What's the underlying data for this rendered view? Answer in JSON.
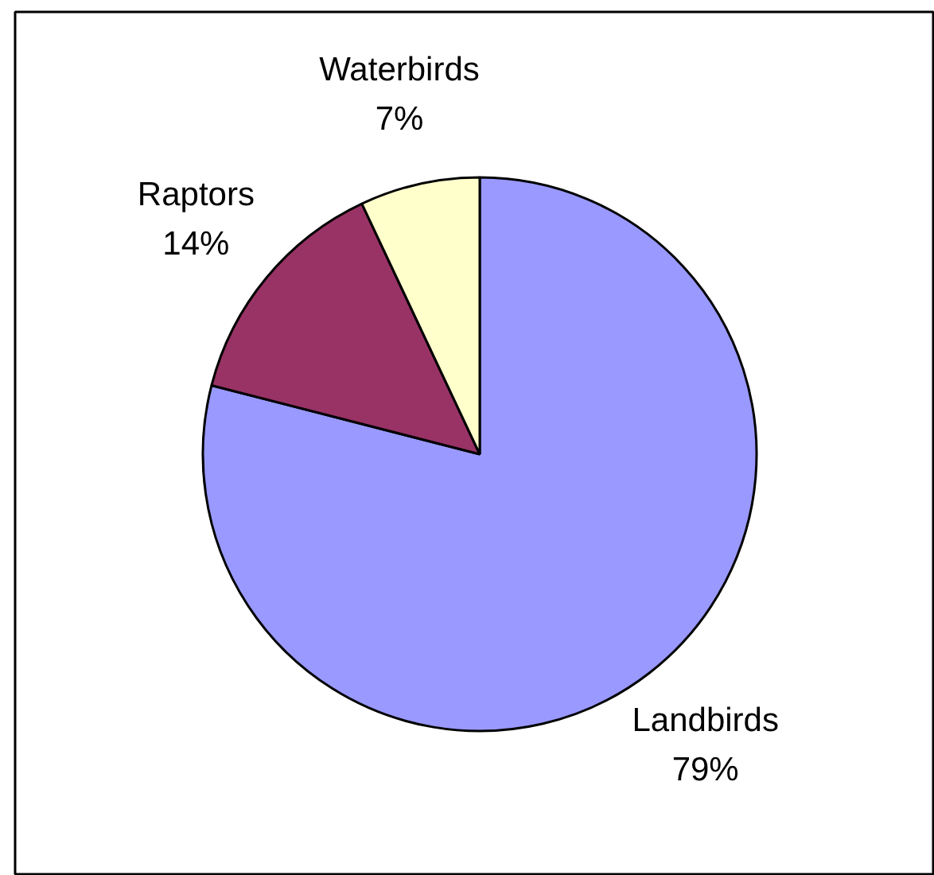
{
  "chart_data": {
    "type": "pie",
    "categories": [
      "Landbirds",
      "Raptors",
      "Waterbirds"
    ],
    "values": [
      79,
      14,
      7
    ],
    "colors": [
      "#9999ff",
      "#993366",
      "#ffffcc"
    ],
    "value_labels": [
      "79%",
      "14%",
      "7%"
    ]
  }
}
